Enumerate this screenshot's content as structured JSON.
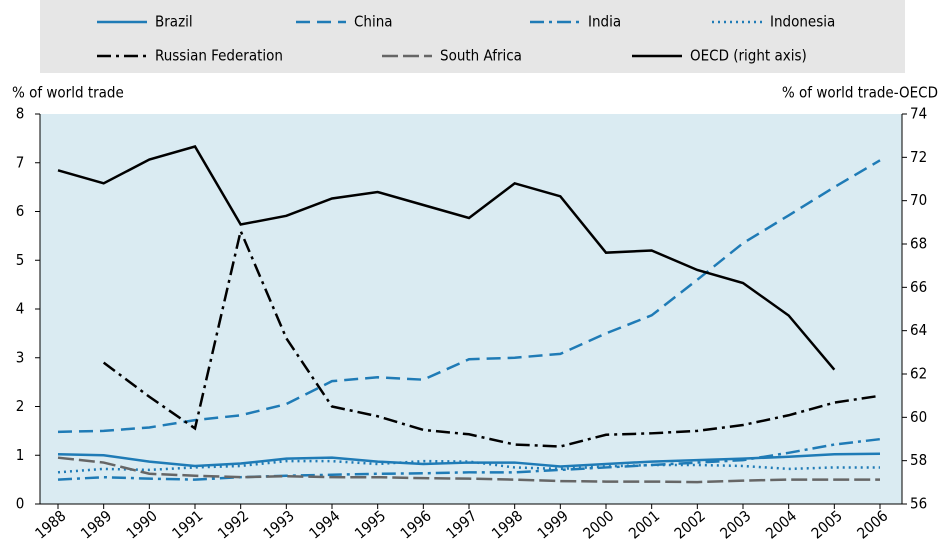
{
  "chart_data": {
    "type": "line",
    "y_label": "% of world trade",
    "y2_label": "% of world trade-OECD",
    "categories": [
      "1988",
      "1989",
      "1990",
      "1991",
      "1992",
      "1993",
      "1994",
      "1995",
      "1996",
      "1997",
      "1998",
      "1999",
      "2000",
      "2001",
      "2002",
      "2003",
      "2004",
      "2005",
      "2006"
    ],
    "series": [
      {
        "name": "Brazil",
        "color": "#1f7bb6",
        "dash": "solid",
        "values": [
          1.02,
          1.0,
          0.87,
          0.78,
          0.83,
          0.93,
          0.95,
          0.87,
          0.82,
          0.85,
          0.85,
          0.77,
          0.82,
          0.87,
          0.9,
          0.93,
          0.97,
          1.02,
          1.03
        ]
      },
      {
        "name": "China",
        "color": "#1f7bb6",
        "dash": "dashed",
        "values": [
          1.48,
          1.5,
          1.57,
          1.72,
          1.82,
          2.05,
          2.52,
          2.6,
          2.55,
          2.97,
          3.0,
          3.08,
          3.5,
          3.87,
          4.6,
          5.35,
          5.92,
          6.5,
          7.05
        ]
      },
      {
        "name": "India",
        "color": "#1f7bb6",
        "dashdot": true,
        "dash": "dashdot",
        "values": [
          0.5,
          0.55,
          0.52,
          0.5,
          0.55,
          0.58,
          0.6,
          0.62,
          0.63,
          0.65,
          0.65,
          0.7,
          0.75,
          0.8,
          0.85,
          0.9,
          1.05,
          1.22,
          1.33
        ]
      },
      {
        "name": "Indonesia",
        "color": "#1f7bb6",
        "dash": "dotted",
        "values": [
          0.65,
          0.72,
          0.7,
          0.75,
          0.78,
          0.88,
          0.88,
          0.82,
          0.88,
          0.87,
          0.75,
          0.72,
          0.77,
          0.8,
          0.8,
          0.78,
          0.72,
          0.75,
          0.75
        ]
      },
      {
        "name": "Russian Federation",
        "color": "#000000",
        "dash": "dashdot",
        "values": [
          null,
          2.9,
          2.2,
          1.55,
          5.6,
          3.4,
          2.0,
          1.8,
          1.52,
          1.43,
          1.22,
          1.18,
          1.42,
          1.45,
          1.5,
          1.62,
          1.82,
          2.08,
          2.22
        ]
      },
      {
        "name": "South Africa",
        "color": "#666666",
        "dash": "longdash",
        "values": [
          0.95,
          0.85,
          0.62,
          0.58,
          0.55,
          0.57,
          0.55,
          0.55,
          0.53,
          0.52,
          0.5,
          0.47,
          0.46,
          0.46,
          0.45,
          0.48,
          0.5,
          0.5,
          0.5
        ]
      },
      {
        "name": "OECD (right axis)",
        "color": "#000000",
        "dash": "solid",
        "axis": "y2",
        "values": [
          71.4,
          70.8,
          71.9,
          72.5,
          68.9,
          69.3,
          70.1,
          70.4,
          69.8,
          69.2,
          70.8,
          70.2,
          67.6,
          67.7,
          66.8,
          66.2,
          64.7,
          62.2,
          null
        ]
      }
    ],
    "ylim": [
      0,
      8
    ],
    "yticks": [
      0,
      1,
      2,
      3,
      4,
      5,
      6,
      7,
      8
    ],
    "y2lim": [
      56,
      74
    ],
    "y2ticks": [
      56,
      58,
      60,
      62,
      64,
      66,
      68,
      70,
      72,
      74
    ],
    "grid": false
  }
}
